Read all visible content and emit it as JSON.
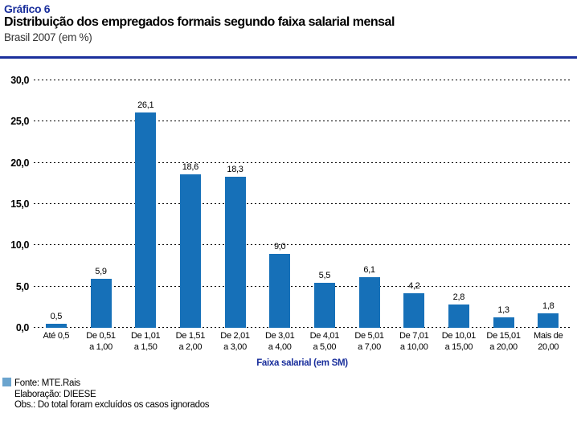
{
  "header": {
    "kicker": "Gráfico 6",
    "title": "Distribuição dos empregados formais segundo faixa salarial mensal",
    "subtitle": "Brasil 2007 (em %)"
  },
  "chart_data": {
    "type": "bar",
    "title": "Distribuição dos empregados formais segundo faixa salarial mensal",
    "subtitle": "Brasil 2007 (em %)",
    "xlabel": "Faixa salarial (em SM)",
    "ylabel": "",
    "ylim": [
      0,
      30
    ],
    "grid": "horizontal-dotted",
    "legend_position": "none",
    "bar_color": "#1670B8",
    "categories": [
      "Até 0,5",
      "De 0,51 a 1,00",
      "De 1,01 a 1,50",
      "De 1,51 a 2,00",
      "De 2,01 a 3,00",
      "De 3,01 a 4,00",
      "De 4,01 a 5,00",
      "De 5,01 a 7,00",
      "De 7,01 a 10,00",
      "De 10,01 a 15,00",
      "De 15,01 a 20,00",
      "Mais de 20,00"
    ],
    "category_lines": [
      [
        "Até 0,5"
      ],
      [
        "De 0,51",
        "a 1,00"
      ],
      [
        "De 1,01",
        "a 1,50"
      ],
      [
        "De 1,51",
        "a 2,00"
      ],
      [
        "De 2,01",
        "a 3,00"
      ],
      [
        "De 3,01",
        "a 4,00"
      ],
      [
        "De 4,01",
        "a 5,00"
      ],
      [
        "De 5,01",
        "a 7,00"
      ],
      [
        "De 7,01",
        "a 10,00"
      ],
      [
        "De 10,01",
        "a 15,00"
      ],
      [
        "De 15,01",
        "a 20,00"
      ],
      [
        "Mais de",
        "20,00"
      ]
    ],
    "values": [
      0.5,
      5.9,
      26.1,
      18.6,
      18.3,
      9.0,
      5.5,
      6.1,
      4.2,
      2.8,
      1.3,
      1.8
    ],
    "value_labels": [
      "0,5",
      "5,9",
      "26,1",
      "18,6",
      "18,3",
      "9,0",
      "5,5",
      "6,1",
      "4,2",
      "2,8",
      "1,3",
      "1,8"
    ],
    "yticks": [
      0,
      5,
      10,
      15,
      20,
      25,
      30
    ],
    "ytick_labels": [
      "0,0",
      "5,0",
      "10,0",
      "15,0",
      "20,0",
      "25,0",
      "30,0"
    ]
  },
  "footer": {
    "source": "Fonte: MTE.Rais",
    "elaboration": "Elaboração: DIEESE",
    "note": "Obs.: Do total foram excluídos os casos ignorados",
    "legend_square_color": "#6BA4CE"
  },
  "colors": {
    "accent_navy": "#1A2F9C",
    "bar_blue": "#1670B8"
  }
}
